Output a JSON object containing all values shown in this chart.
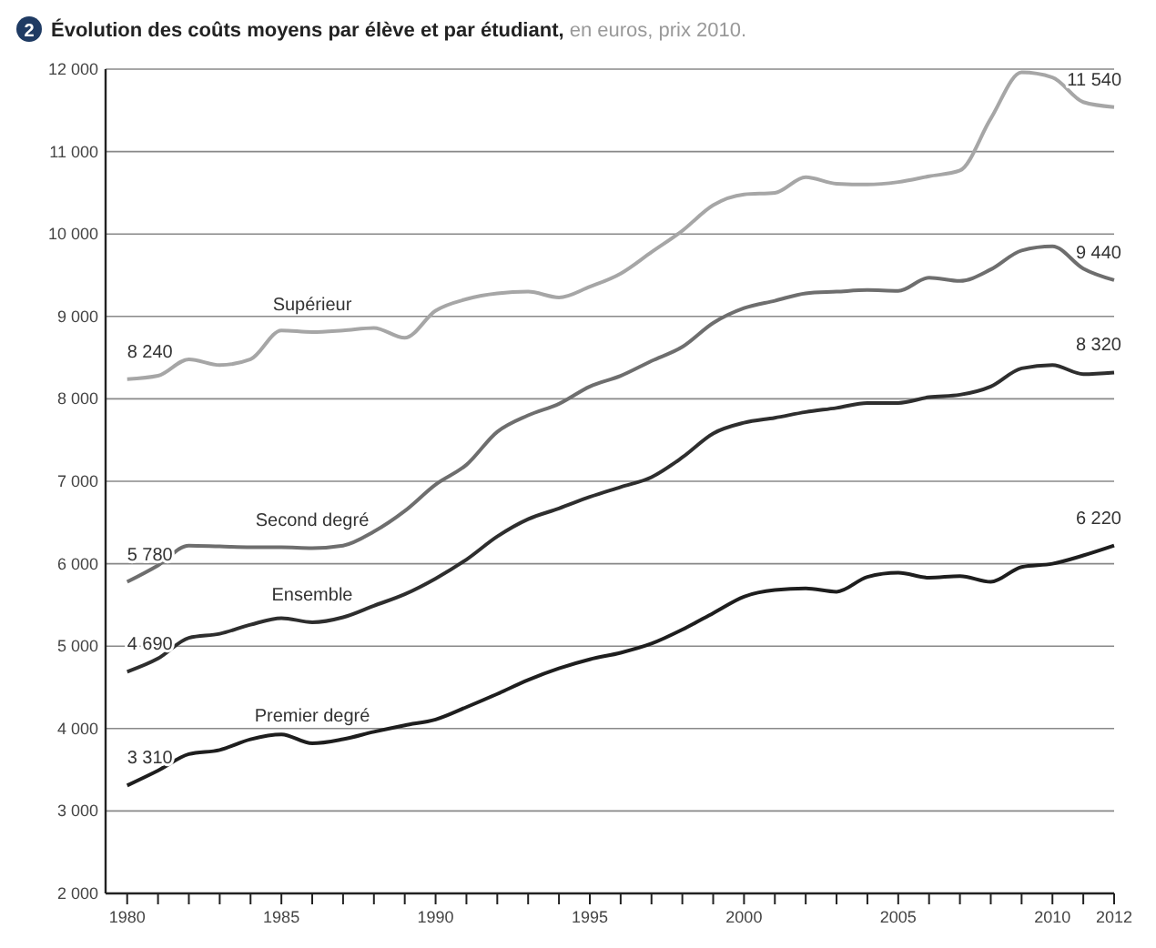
{
  "chart_data": {
    "type": "line",
    "title": "Évolution des coûts moyens par élève et par étudiant,",
    "subtitle": "en euros, prix 2010.",
    "annotations": [
      "2"
    ],
    "x": [
      1980,
      1981,
      1982,
      1983,
      1984,
      1985,
      1986,
      1987,
      1988,
      1989,
      1990,
      1991,
      1992,
      1993,
      1994,
      1995,
      1996,
      1997,
      1998,
      1999,
      2000,
      2001,
      2002,
      2003,
      2004,
      2005,
      2006,
      2007,
      2008,
      2009,
      2010,
      2011,
      2012
    ],
    "xlim": [
      1979.3,
      2012
    ],
    "xticks": [
      1980,
      {
        "value": 1981,
        "label": null
      },
      {
        "value": 1982,
        "label": null
      },
      {
        "value": 1983,
        "label": null
      },
      {
        "value": 1984,
        "label": null
      },
      1985,
      {
        "value": 1986,
        "label": null
      },
      {
        "value": 1987,
        "label": null
      },
      {
        "value": 1988,
        "label": null
      },
      {
        "value": 1989,
        "label": null
      },
      1990,
      {
        "value": 1991,
        "label": null
      },
      {
        "value": 1992,
        "label": null
      },
      {
        "value": 1993,
        "label": null
      },
      {
        "value": 1994,
        "label": null
      },
      1995,
      {
        "value": 1996,
        "label": null
      },
      {
        "value": 1997,
        "label": null
      },
      {
        "value": 1998,
        "label": null
      },
      {
        "value": 1999,
        "label": null
      },
      2000,
      {
        "value": 2001,
        "label": null
      },
      {
        "value": 2002,
        "label": null
      },
      {
        "value": 2003,
        "label": null
      },
      {
        "value": 2004,
        "label": null
      },
      2005,
      {
        "value": 2006,
        "label": null
      },
      {
        "value": 2007,
        "label": null
      },
      {
        "value": 2008,
        "label": null
      },
      {
        "value": 2009,
        "label": null
      },
      2010,
      {
        "value": 2011,
        "label": null
      },
      2012
    ],
    "ylim": [
      2000,
      12000
    ],
    "yticks": [
      {
        "value": 2000,
        "label": "2 000"
      },
      {
        "value": 3000,
        "label": "3 000"
      },
      {
        "value": 4000,
        "label": "4 000"
      },
      {
        "value": 5000,
        "label": "5 000"
      },
      {
        "value": 6000,
        "label": "6 000"
      },
      {
        "value": 7000,
        "label": "7 000"
      },
      {
        "value": 8000,
        "label": "8 000"
      },
      {
        "value": 9000,
        "label": "9 000"
      },
      {
        "value": 10000,
        "label": "10 000"
      },
      {
        "value": 11000,
        "label": "11 000"
      },
      {
        "value": 12000,
        "label": "12 000"
      }
    ],
    "grid": "y",
    "marker": "none",
    "line_style": "solid",
    "series": [
      {
        "name": "Supérieur",
        "color": "#a6a6a6",
        "values": [
          8240,
          8280,
          8480,
          8410,
          8480,
          8830,
          8810,
          8830,
          8860,
          8740,
          9070,
          9210,
          9280,
          9300,
          9230,
          9360,
          9520,
          9780,
          10040,
          10350,
          10480,
          10500,
          10690,
          10610,
          10600,
          10630,
          10700,
          10770,
          11400,
          11960,
          11900,
          11600,
          11540
        ],
        "value_labels": [
          "8 240",
          null,
          null,
          null,
          null,
          null,
          null,
          null,
          null,
          null,
          null,
          null,
          null,
          null,
          null,
          null,
          null,
          null,
          null,
          null,
          null,
          null,
          null,
          null,
          null,
          null,
          null,
          null,
          null,
          null,
          null,
          null,
          "11 540"
        ]
      },
      {
        "name": "Second degré",
        "color": "#6e6e6e",
        "values": [
          5780,
          5980,
          6220,
          6210,
          6200,
          6200,
          6190,
          6220,
          6390,
          6640,
          6960,
          7200,
          7600,
          7800,
          7940,
          8150,
          8280,
          8460,
          8630,
          8920,
          9100,
          9190,
          9280,
          9300,
          9320,
          9310,
          9470,
          9430,
          9570,
          9800,
          9850,
          9580,
          9440
        ],
        "value_labels": [
          "5 780",
          null,
          null,
          null,
          null,
          null,
          null,
          null,
          null,
          null,
          null,
          null,
          null,
          null,
          null,
          null,
          null,
          null,
          null,
          null,
          null,
          null,
          null,
          null,
          null,
          null,
          null,
          null,
          null,
          null,
          null,
          null,
          "9 440"
        ]
      },
      {
        "name": "Ensemble",
        "color": "#2e2e2e",
        "values": [
          4690,
          4850,
          5100,
          5150,
          5260,
          5340,
          5290,
          5350,
          5490,
          5630,
          5820,
          6050,
          6330,
          6540,
          6670,
          6810,
          6930,
          7050,
          7290,
          7580,
          7710,
          7770,
          7840,
          7890,
          7950,
          7950,
          8020,
          8050,
          8150,
          8370,
          8410,
          8300,
          8320
        ],
        "value_labels": [
          "4 690",
          null,
          null,
          null,
          null,
          null,
          null,
          null,
          null,
          null,
          null,
          null,
          null,
          null,
          null,
          null,
          null,
          null,
          null,
          null,
          null,
          null,
          null,
          null,
          null,
          null,
          null,
          null,
          null,
          null,
          null,
          null,
          "8 320"
        ]
      },
      {
        "name": "Premier degré",
        "color": "#1e1e1e",
        "values": [
          3310,
          3490,
          3690,
          3740,
          3870,
          3930,
          3820,
          3870,
          3960,
          4040,
          4110,
          4260,
          4420,
          4590,
          4730,
          4840,
          4920,
          5030,
          5200,
          5400,
          5600,
          5680,
          5700,
          5660,
          5840,
          5890,
          5830,
          5850,
          5780,
          5960,
          6000,
          6100,
          6220
        ],
        "value_labels": [
          "3 310",
          null,
          null,
          null,
          null,
          null,
          null,
          null,
          null,
          null,
          null,
          null,
          null,
          null,
          null,
          null,
          null,
          null,
          null,
          null,
          null,
          null,
          null,
          null,
          null,
          null,
          null,
          null,
          null,
          null,
          null,
          null,
          "6 220"
        ]
      }
    ]
  }
}
